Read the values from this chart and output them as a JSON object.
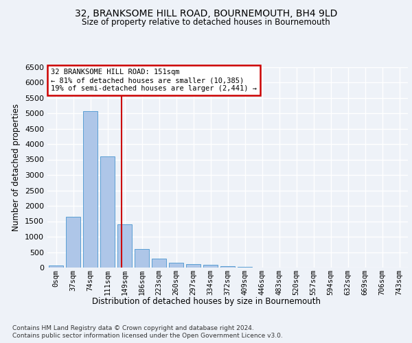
{
  "title1": "32, BRANKSOME HILL ROAD, BOURNEMOUTH, BH4 9LD",
  "title2": "Size of property relative to detached houses in Bournemouth",
  "xlabel": "Distribution of detached houses by size in Bournemouth",
  "ylabel": "Number of detached properties",
  "footer1": "Contains HM Land Registry data © Crown copyright and database right 2024.",
  "footer2": "Contains public sector information licensed under the Open Government Licence v3.0.",
  "bar_labels": [
    "0sqm",
    "37sqm",
    "74sqm",
    "111sqm",
    "149sqm",
    "186sqm",
    "223sqm",
    "260sqm",
    "297sqm",
    "334sqm",
    "372sqm",
    "409sqm",
    "446sqm",
    "483sqm",
    "520sqm",
    "557sqm",
    "594sqm",
    "632sqm",
    "669sqm",
    "706sqm",
    "743sqm"
  ],
  "bar_values": [
    75,
    1650,
    5060,
    3600,
    1400,
    610,
    290,
    150,
    110,
    80,
    55,
    30,
    0,
    0,
    0,
    0,
    0,
    0,
    0,
    0,
    0
  ],
  "bar_color": "#aec6e8",
  "bar_edge_color": "#5a9fd4",
  "vline_x": 3.82,
  "vline_color": "#cc0000",
  "annotation_text": "32 BRANKSOME HILL ROAD: 151sqm\n← 81% of detached houses are smaller (10,385)\n19% of semi-detached houses are larger (2,441) →",
  "annotation_box_color": "#cc0000",
  "ylim": [
    0,
    6500
  ],
  "yticks": [
    0,
    500,
    1000,
    1500,
    2000,
    2500,
    3000,
    3500,
    4000,
    4500,
    5000,
    5500,
    6000,
    6500
  ],
  "background_color": "#eef2f8",
  "grid_color": "#ffffff"
}
